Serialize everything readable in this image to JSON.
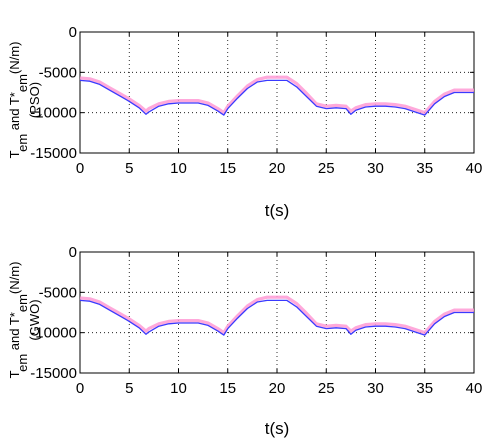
{
  "chart_data": [
    {
      "type": "line",
      "xlabel": "t(s)",
      "ylabel": {
        "t1": "T",
        "s1": "em",
        "t2": " and T*",
        "s2": "em",
        "t3": "(N/m)",
        "method": "(PSO)"
      },
      "xlim": [
        0,
        40
      ],
      "ylim": [
        -15000,
        0
      ],
      "xticks": [
        "0",
        "5",
        "10",
        "15",
        "20",
        "25",
        "30",
        "35",
        "40"
      ],
      "yticks": [
        "0",
        "-5000",
        "-10000",
        "-15000"
      ],
      "grid": true,
      "series": [
        {
          "color": "#3a3aff",
          "x": [
            0,
            1,
            2,
            3,
            4,
            5,
            6,
            6.7,
            7,
            8,
            9,
            10,
            11,
            12,
            13,
            14,
            14.6,
            15,
            16,
            17,
            18,
            19,
            20,
            21,
            22,
            23,
            24,
            25,
            26,
            27,
            27.5,
            28,
            29,
            30,
            31,
            32,
            33,
            34,
            35,
            36,
            37,
            38,
            39,
            40
          ],
          "values": [
            -6000,
            -6100,
            -6500,
            -7200,
            -7900,
            -8600,
            -9400,
            -10200,
            -9900,
            -9200,
            -8900,
            -8800,
            -8800,
            -8800,
            -9100,
            -9800,
            -10300,
            -9500,
            -8200,
            -7000,
            -6200,
            -6000,
            -6000,
            -6000,
            -6800,
            -8000,
            -9200,
            -9500,
            -9400,
            -9500,
            -10200,
            -9700,
            -9300,
            -9200,
            -9200,
            -9300,
            -9500,
            -9900,
            -10300,
            -8900,
            -8000,
            -7500,
            -7500,
            -7500
          ]
        },
        {
          "color": "#ff9ad5",
          "x": [
            0,
            1,
            2,
            3,
            4,
            5,
            6,
            6.7,
            7,
            8,
            9,
            10,
            11,
            12,
            13,
            14,
            14.6,
            15,
            16,
            17,
            18,
            19,
            20,
            21,
            22,
            23,
            24,
            25,
            26,
            27,
            27.5,
            28,
            29,
            30,
            31,
            32,
            33,
            34,
            35,
            36,
            37,
            38,
            39,
            40
          ],
          "values": [
            -5700,
            -5800,
            -6200,
            -6900,
            -7600,
            -8300,
            -9100,
            -9800,
            -9500,
            -8900,
            -8600,
            -8500,
            -8500,
            -8500,
            -8800,
            -9500,
            -10000,
            -9200,
            -7900,
            -6700,
            -5900,
            -5600,
            -5600,
            -5600,
            -6400,
            -7600,
            -8900,
            -9200,
            -9100,
            -9200,
            -9800,
            -9400,
            -9000,
            -8900,
            -8900,
            -9000,
            -9200,
            -9600,
            -10000,
            -8600,
            -7700,
            -7200,
            -7200,
            -7200
          ]
        }
      ]
    },
    {
      "type": "line",
      "xlabel": "t(s)",
      "ylabel": {
        "t1": "T",
        "s1": "em",
        "t2": " and T*",
        "s2": "em",
        "t3": "(N/m)",
        "method": "(GWO)"
      },
      "xlim": [
        0,
        40
      ],
      "ylim": [
        -15000,
        0
      ],
      "xticks": [
        "0",
        "5",
        "10",
        "15",
        "20",
        "25",
        "30",
        "35",
        "40"
      ],
      "yticks": [
        "0",
        "-5000",
        "-10000",
        "-15000"
      ],
      "grid": true,
      "series": [
        {
          "color": "#3a3aff",
          "x": [
            0,
            1,
            2,
            3,
            4,
            5,
            6,
            6.7,
            7,
            8,
            9,
            10,
            11,
            12,
            13,
            14,
            14.6,
            15,
            16,
            17,
            18,
            19,
            20,
            21,
            22,
            23,
            24,
            25,
            26,
            27,
            27.5,
            28,
            29,
            30,
            31,
            32,
            33,
            34,
            35,
            36,
            37,
            38,
            39,
            40
          ],
          "values": [
            -6000,
            -6100,
            -6500,
            -7200,
            -7900,
            -8600,
            -9400,
            -10200,
            -9900,
            -9200,
            -8900,
            -8800,
            -8800,
            -8800,
            -9100,
            -9800,
            -10300,
            -9500,
            -8200,
            -7000,
            -6200,
            -6000,
            -6000,
            -6000,
            -6800,
            -8000,
            -9200,
            -9500,
            -9400,
            -9500,
            -10200,
            -9700,
            -9300,
            -9200,
            -9200,
            -9300,
            -9500,
            -9900,
            -10300,
            -8900,
            -8000,
            -7500,
            -7500,
            -7500
          ]
        },
        {
          "color": "#ff9ad5",
          "x": [
            0,
            1,
            2,
            3,
            4,
            5,
            6,
            6.7,
            7,
            8,
            9,
            10,
            11,
            12,
            13,
            14,
            14.6,
            15,
            16,
            17,
            18,
            19,
            20,
            21,
            22,
            23,
            24,
            25,
            26,
            27,
            27.5,
            28,
            29,
            30,
            31,
            32,
            33,
            34,
            35,
            36,
            37,
            38,
            39,
            40
          ],
          "values": [
            -5700,
            -5800,
            -6200,
            -6900,
            -7600,
            -8300,
            -9100,
            -9800,
            -9500,
            -8900,
            -8600,
            -8500,
            -8500,
            -8500,
            -8800,
            -9500,
            -10000,
            -9200,
            -7900,
            -6700,
            -5900,
            -5600,
            -5600,
            -5600,
            -6400,
            -7600,
            -8900,
            -9200,
            -9100,
            -9200,
            -9800,
            -9400,
            -9000,
            -8900,
            -8900,
            -9000,
            -9200,
            -9600,
            -10000,
            -8600,
            -7700,
            -7200,
            -7200,
            -7200
          ]
        }
      ]
    }
  ]
}
